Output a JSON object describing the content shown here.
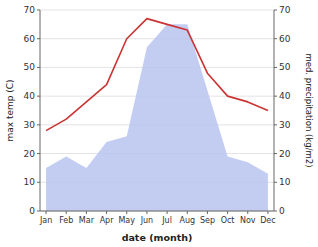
{
  "chart_data": {
    "type": "line",
    "xlabel": "date (month)",
    "ylabel": "max temp (C)",
    "y2label": "med. precipitation (kg/m2)",
    "categories": [
      "Jan",
      "Feb",
      "Mar",
      "Apr",
      "May",
      "Jun",
      "Jul",
      "Aug",
      "Sep",
      "Oct",
      "Nov",
      "Dec"
    ],
    "series": [
      {
        "type": "area",
        "axis": "y2",
        "color": "#b8c4ee",
        "values": [
          15,
          19,
          15,
          24,
          26,
          57,
          65,
          65,
          42,
          19,
          17,
          13
        ]
      },
      {
        "type": "line",
        "color": "#cc3333",
        "values": [
          28,
          32,
          38,
          44,
          60,
          67,
          65,
          63,
          48,
          40,
          38,
          35
        ]
      }
    ],
    "ylim": [
      0,
      70
    ],
    "yticks": [
      0,
      10,
      20,
      30,
      40,
      50,
      60,
      70
    ],
    "y2lim": [
      0,
      70
    ],
    "y2ticks": [
      0,
      10,
      20,
      30,
      40,
      50,
      60,
      70
    ],
    "grid": true
  }
}
